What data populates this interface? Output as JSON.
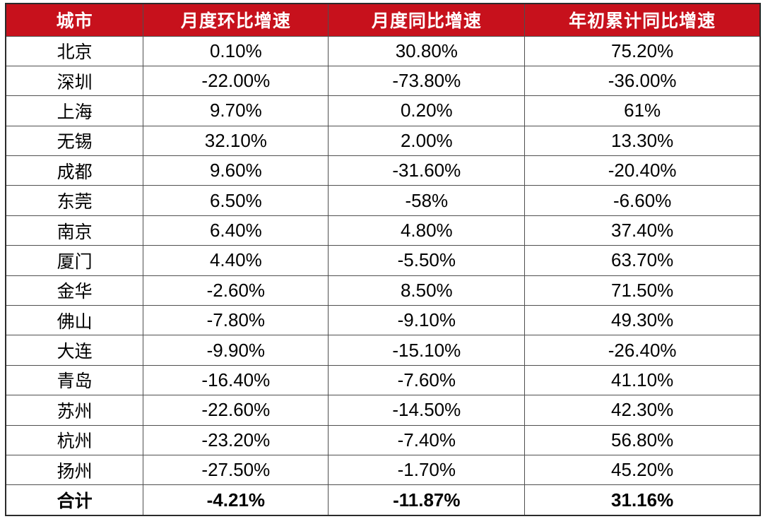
{
  "chart_data": {
    "type": "table",
    "title": "",
    "columns": [
      "城市",
      "月度环比增速",
      "月度同比增速",
      "年初累计同比增速"
    ],
    "rows": [
      [
        "北京",
        "0.10%",
        "30.80%",
        "75.20%"
      ],
      [
        "深圳",
        "-22.00%",
        "-73.80%",
        "-36.00%"
      ],
      [
        "上海",
        "9.70%",
        "0.20%",
        "61%"
      ],
      [
        "无锡",
        "32.10%",
        "2.00%",
        "13.30%"
      ],
      [
        "成都",
        "9.60%",
        "-31.60%",
        "-20.40%"
      ],
      [
        "东莞",
        "6.50%",
        "-58%",
        "-6.60%"
      ],
      [
        "南京",
        "6.40%",
        "4.80%",
        "37.40%"
      ],
      [
        "厦门",
        "4.40%",
        "-5.50%",
        "63.70%"
      ],
      [
        "金华",
        "-2.60%",
        "8.50%",
        "71.50%"
      ],
      [
        "佛山",
        "-7.80%",
        "-9.10%",
        "49.30%"
      ],
      [
        "大连",
        "-9.90%",
        "-15.10%",
        "-26.40%"
      ],
      [
        "青岛",
        "-16.40%",
        "-7.60%",
        "41.10%"
      ],
      [
        "苏州",
        "-22.60%",
        "-14.50%",
        "42.30%"
      ],
      [
        "杭州",
        "-23.20%",
        "-7.40%",
        "56.80%"
      ],
      [
        "扬州",
        "-27.50%",
        "-1.70%",
        "45.20%"
      ]
    ],
    "total_row": [
      "合计",
      "-4.21%",
      "-11.87%",
      "31.16%"
    ],
    "layout": {
      "column_width_percents": [
        18.24,
        24.54,
        26.02,
        31.2
      ],
      "grid": "on",
      "header_position": "top"
    },
    "colors": {
      "header_bg": "#c7111c",
      "header_text": "#ffffff",
      "body_text": "#000000",
      "body_bg": "#ffffff",
      "grid_border": "#4f4f4f",
      "outer_border": "#2b2b2b"
    }
  }
}
